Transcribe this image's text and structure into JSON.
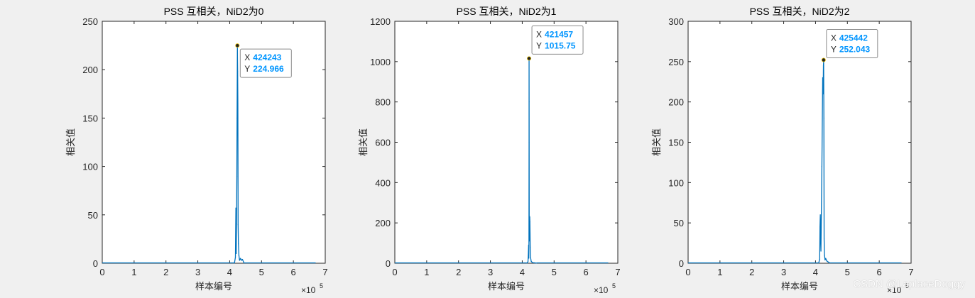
{
  "watermark": "CSDN @LaplaceDoggy",
  "colors": {
    "line": "#0072BD",
    "axis": "#262626",
    "figure_bg": "#f0f0f0",
    "datatip_value": "#0095ff"
  },
  "chart_data": [
    {
      "type": "line",
      "title": "PSS 互相关，NiD2为0",
      "xlabel": "样本编号",
      "ylabel": "相关值",
      "x_exponent_label": "×10",
      "x_exponent": "5",
      "xlim": [
        0,
        7
      ],
      "ylim": [
        0,
        250
      ],
      "xticks": [
        0,
        1,
        2,
        3,
        4,
        5,
        6,
        7
      ],
      "yticks": [
        0,
        50,
        100,
        150,
        200,
        250
      ],
      "x_data_end": 6.7,
      "series": [
        {
          "x": [
            4.15,
            4.18,
            4.195,
            4.205,
            4.215,
            4.225,
            4.232,
            4.236,
            4.24,
            4.24243,
            4.245,
            4.25,
            4.257,
            4.265,
            4.275,
            4.29,
            4.31,
            4.34,
            4.37,
            4.4,
            4.45
          ],
          "y": [
            0.3,
            6,
            57,
            10,
            41,
            90,
            150,
            175,
            205,
            224.966,
            212,
            198,
            165,
            40,
            20,
            8,
            3,
            5,
            3,
            4,
            0.3
          ]
        }
      ],
      "datatip": {
        "x_label": "X",
        "x_value": "424243",
        "y_label": "Y",
        "y_value": "224.966",
        "x": 4.24243,
        "y": 224.966
      }
    },
    {
      "type": "line",
      "title": "PSS 互相关，NiD2为1",
      "xlabel": "样本编号",
      "ylabel": "相关值",
      "x_exponent_label": "×10",
      "x_exponent": "5",
      "xlim": [
        0,
        7
      ],
      "ylim": [
        0,
        1200
      ],
      "xticks": [
        0,
        1,
        2,
        3,
        4,
        5,
        6,
        7
      ],
      "yticks": [
        0,
        200,
        400,
        600,
        800,
        1000,
        1200
      ],
      "x_data_end": 6.7,
      "series": [
        {
          "x": [
            4.15,
            4.18,
            4.19,
            4.2,
            4.205,
            4.21,
            4.214,
            4.21457,
            4.216,
            4.22,
            4.225,
            4.23,
            4.235,
            4.24,
            4.245,
            4.25,
            4.26,
            4.28,
            4.32,
            4.38,
            4.45
          ],
          "y": [
            1,
            8,
            40,
            90,
            25,
            80,
            600,
            1015.75,
            800,
            110,
            180,
            232,
            228,
            205,
            150,
            80,
            30,
            10,
            3,
            2,
            1
          ]
        }
      ],
      "datatip": {
        "x_label": "X",
        "x_value": "421457",
        "y_label": "Y",
        "y_value": "1015.75",
        "x": 4.21457,
        "y": 1015.75
      }
    },
    {
      "type": "line",
      "title": "PSS 互相关，NiD2为2",
      "xlabel": "样本编号",
      "ylabel": "相关值",
      "x_exponent_label": "×10",
      "x_exponent": "5",
      "xlim": [
        0,
        7
      ],
      "ylim": [
        0,
        300
      ],
      "xticks": [
        0,
        1,
        2,
        3,
        4,
        5,
        6,
        7
      ],
      "yticks": [
        0,
        50,
        100,
        150,
        200,
        250,
        300
      ],
      "x_data_end": 6.7,
      "series": [
        {
          "x": [
            4.1,
            4.13,
            4.14,
            4.15,
            4.16,
            4.17,
            4.2,
            4.225,
            4.24,
            4.248,
            4.254,
            4.25442,
            4.256,
            4.262,
            4.27,
            4.28,
            4.3,
            4.32,
            4.35,
            4.38,
            4.45
          ],
          "y": [
            0.3,
            5,
            45,
            60,
            30,
            15,
            120,
            230,
            210,
            245,
            250,
            252.043,
            240,
            180,
            30,
            10,
            4,
            6,
            3,
            2,
            0.3
          ]
        }
      ],
      "datatip": {
        "x_label": "X",
        "x_value": "425442",
        "y_label": "Y",
        "y_value": "252.043",
        "x": 4.25442,
        "y": 252.043
      }
    }
  ]
}
